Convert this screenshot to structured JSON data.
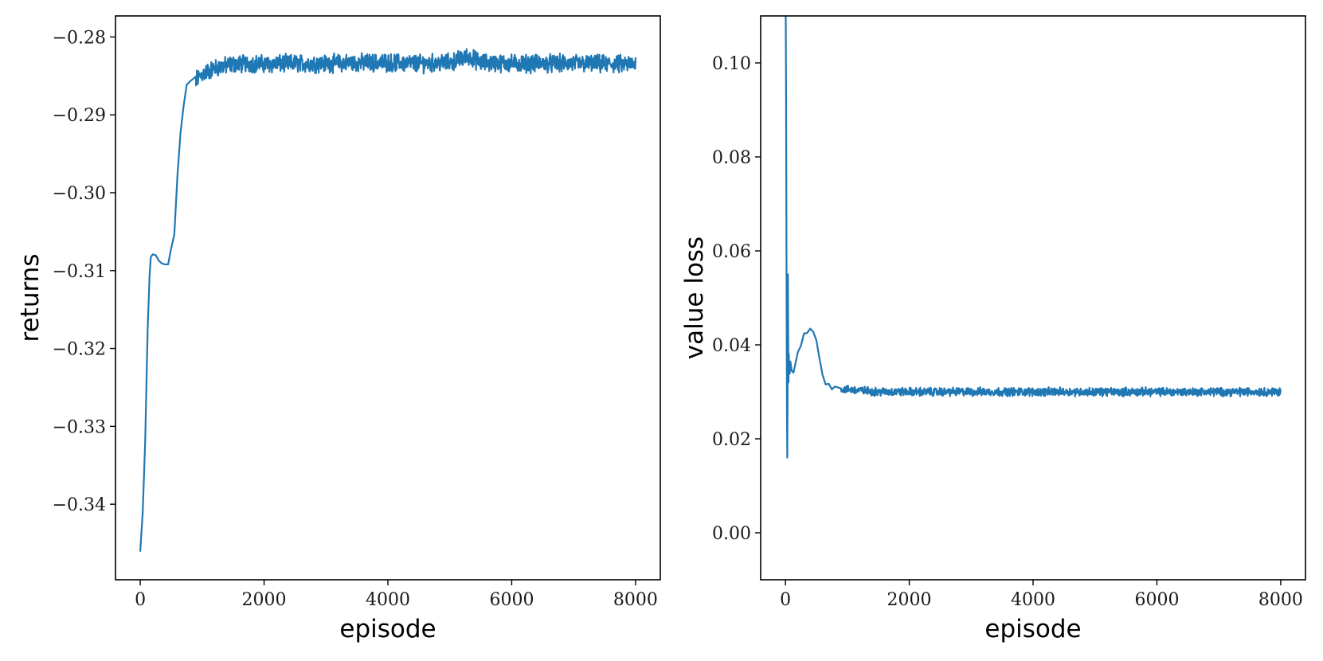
{
  "chart_data": [
    {
      "type": "line",
      "xlabel": "episode",
      "ylabel": "returns",
      "xlim": [
        -400,
        8400
      ],
      "ylim": [
        -0.3497,
        -0.2773
      ],
      "xticks": [
        0,
        2000,
        4000,
        6000,
        8000
      ],
      "xtick_labels": [
        "0",
        "2000",
        "4000",
        "6000",
        "8000"
      ],
      "yticks": [
        -0.34,
        -0.33,
        -0.32,
        -0.31,
        -0.3,
        -0.29,
        -0.28
      ],
      "ytick_labels": [
        "−0.34",
        "−0.33",
        "−0.32",
        "−0.31",
        "−0.30",
        "−0.29",
        "−0.28"
      ],
      "grid": false,
      "color": "#1f77b4",
      "noise_amplitude": 0.0009,
      "series": [
        {
          "x": [
            0,
            40,
            80,
            120,
            150,
            170,
            200,
            250,
            300,
            350,
            400,
            450,
            500,
            550,
            600,
            650,
            700,
            750,
            800,
            900,
            1000,
            1200,
            1500,
            1800,
            2000,
            2500,
            3000,
            3500,
            4000,
            4500,
            5000,
            5300,
            5500,
            6000,
            6500,
            7000,
            7500,
            8000
          ],
          "y": [
            -0.346,
            -0.341,
            -0.332,
            -0.318,
            -0.311,
            -0.3085,
            -0.3075,
            -0.3085,
            -0.309,
            -0.3095,
            -0.3095,
            -0.309,
            -0.3075,
            -0.305,
            -0.298,
            -0.292,
            -0.2885,
            -0.2865,
            -0.2862,
            -0.2855,
            -0.2848,
            -0.284,
            -0.2835,
            -0.2834,
            -0.2835,
            -0.2834,
            -0.2834,
            -0.2833,
            -0.2833,
            -0.2834,
            -0.2833,
            -0.2825,
            -0.2833,
            -0.2834,
            -0.2834,
            -0.2834,
            -0.2835,
            -0.2835
          ]
        }
      ]
    },
    {
      "type": "line",
      "xlabel": "episode",
      "ylabel": "value loss",
      "xlim": [
        -400,
        8400
      ],
      "ylim": [
        -0.01,
        0.11
      ],
      "xticks": [
        0,
        2000,
        4000,
        6000,
        8000
      ],
      "xtick_labels": [
        "0",
        "2000",
        "4000",
        "6000",
        "8000"
      ],
      "yticks": [
        0.0,
        0.02,
        0.04,
        0.06,
        0.08,
        0.1
      ],
      "ytick_labels": [
        "0.00",
        "0.02",
        "0.04",
        "0.06",
        "0.08",
        "0.10"
      ],
      "grid": false,
      "color": "#1f77b4",
      "noise_amplitude": 0.0007,
      "series": [
        {
          "x": [
            0,
            5,
            10,
            15,
            20,
            25,
            30,
            35,
            40,
            45,
            50,
            55,
            60,
            70,
            80,
            100,
            130,
            160,
            200,
            250,
            300,
            350,
            400,
            450,
            500,
            550,
            600,
            650,
            700,
            750,
            800,
            900,
            1000,
            1500,
            2000,
            3000,
            4000,
            5000,
            6000,
            7000,
            8000
          ],
          "y": [
            0.115,
            0.11,
            0.095,
            0.07,
            0.045,
            0.025,
            0.016,
            0.03,
            0.055,
            0.04,
            0.032,
            0.038,
            0.035,
            0.034,
            0.036,
            0.035,
            0.034,
            0.036,
            0.038,
            0.04,
            0.042,
            0.043,
            0.0435,
            0.043,
            0.041,
            0.037,
            0.034,
            0.032,
            0.0315,
            0.031,
            0.031,
            0.0305,
            0.0305,
            0.03,
            0.03,
            0.03,
            0.03,
            0.03,
            0.03,
            0.03,
            0.03
          ]
        }
      ]
    }
  ]
}
